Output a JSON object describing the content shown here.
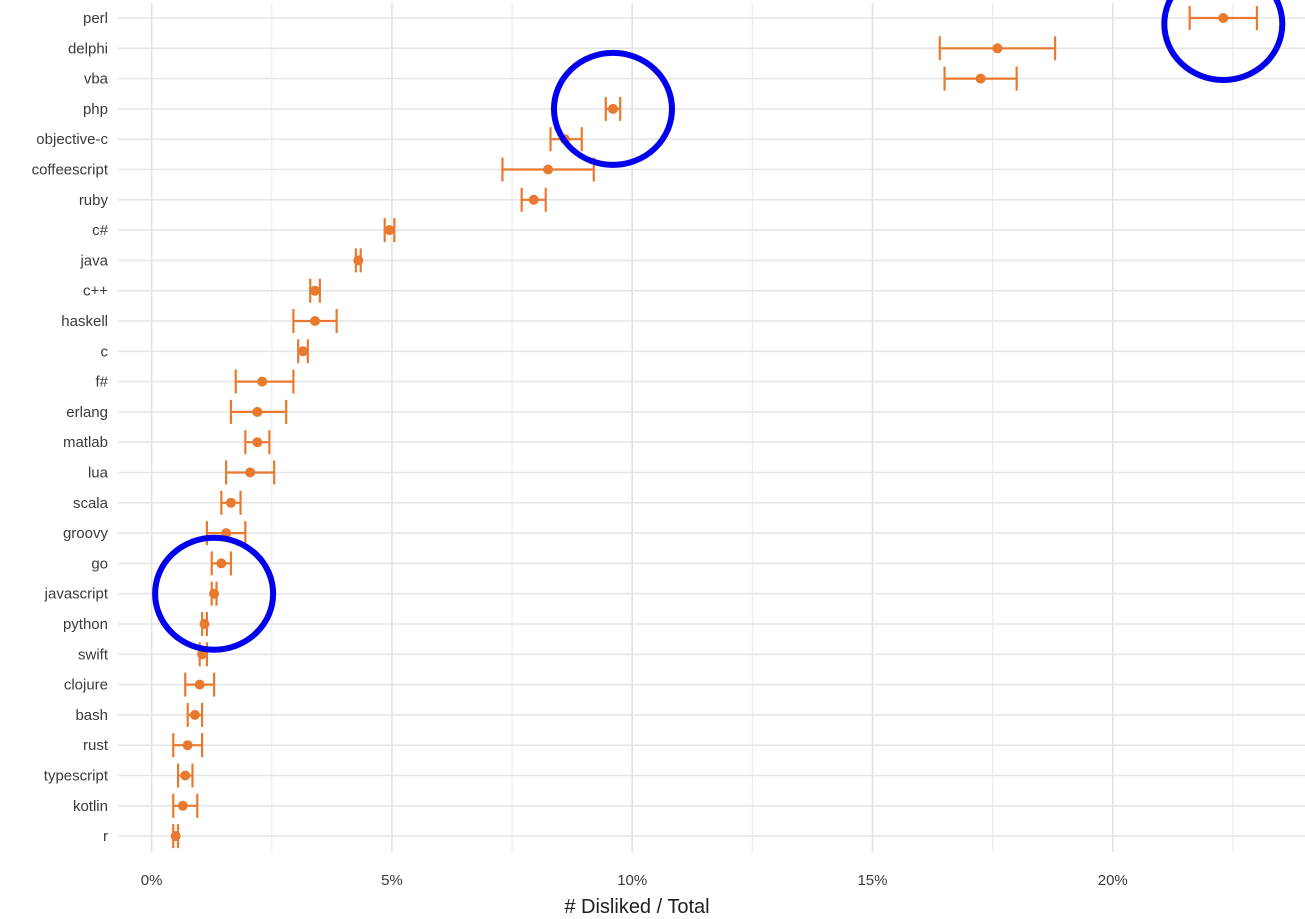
{
  "chart_data": {
    "type": "scatter",
    "xlabel": "# Disliked / Total",
    "ylabel": "",
    "x_ticks": [
      0,
      5,
      10,
      15,
      20
    ],
    "x_tick_labels": [
      "0%",
      "5%",
      "10%",
      "15%",
      "20%"
    ],
    "xlim": [
      -0.7,
      24.0
    ],
    "grid": true,
    "marker_color": "#E8792E",
    "highlight_color": "#0000EE",
    "categories": [
      "perl",
      "delphi",
      "vba",
      "php",
      "objective-c",
      "coffeescript",
      "ruby",
      "c#",
      "java",
      "c++",
      "haskell",
      "c",
      "f#",
      "erlang",
      "matlab",
      "lua",
      "scala",
      "groovy",
      "go",
      "javascript",
      "python",
      "swift",
      "clojure",
      "bash",
      "rust",
      "typescript",
      "kotlin",
      "r"
    ],
    "values": [
      22.3,
      17.6,
      17.25,
      9.6,
      8.6,
      8.25,
      7.95,
      4.95,
      4.3,
      3.4,
      3.4,
      3.15,
      2.3,
      2.2,
      2.2,
      2.05,
      1.65,
      1.55,
      1.45,
      1.3,
      1.1,
      1.05,
      1.0,
      0.9,
      0.75,
      0.7,
      0.65,
      0.5
    ],
    "lower": [
      21.6,
      16.4,
      16.5,
      9.45,
      8.3,
      7.3,
      7.7,
      4.85,
      4.25,
      3.3,
      2.95,
      3.05,
      1.75,
      1.65,
      1.95,
      1.55,
      1.45,
      1.15,
      1.25,
      1.25,
      1.05,
      1.0,
      0.7,
      0.75,
      0.45,
      0.55,
      0.45,
      0.45
    ],
    "upper": [
      23.0,
      18.8,
      18.0,
      9.75,
      8.95,
      9.2,
      8.2,
      5.05,
      4.35,
      3.5,
      3.85,
      3.25,
      2.95,
      2.8,
      2.45,
      2.55,
      1.85,
      1.95,
      1.65,
      1.35,
      1.15,
      1.15,
      1.3,
      1.05,
      1.05,
      0.85,
      0.95,
      0.55
    ],
    "highlighted": [
      "perl",
      "php",
      "javascript"
    ]
  }
}
